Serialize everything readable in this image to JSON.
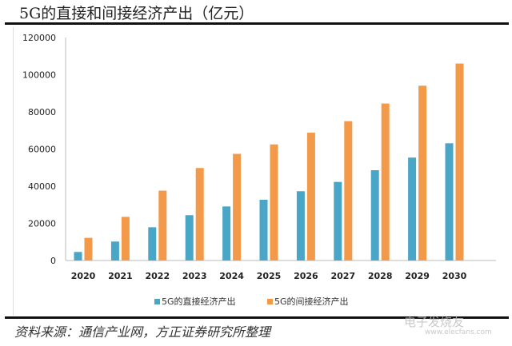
{
  "title": "5G的直接和间接经济产出（亿元）",
  "source": "资料来源：通信产业网，方正证券研究所整理",
  "watermark": {
    "text": "电子发烧友",
    "url_text": "www.elecfans.com"
  },
  "chart_data": {
    "type": "bar",
    "title": "5G的直接和间接经济产出（亿元）",
    "xlabel": "",
    "ylabel": "",
    "ylim": [
      0,
      120000
    ],
    "yticks": [
      0,
      20000,
      40000,
      60000,
      80000,
      100000,
      120000
    ],
    "grid": false,
    "legend": "bottom",
    "categories": [
      "2020",
      "2021",
      "2022",
      "2023",
      "2024",
      "2025",
      "2026",
      "2027",
      "2028",
      "2029",
      "2030"
    ],
    "series": [
      {
        "name": "5G的直接经济产出",
        "color": "#4aa6c6",
        "values": [
          4600,
          10200,
          17900,
          24400,
          29100,
          32700,
          37300,
          42300,
          48600,
          55400,
          63100
        ]
      },
      {
        "name": "5G的间接经济产出",
        "color": "#f39a4a",
        "values": [
          12200,
          23500,
          37600,
          49800,
          57400,
          62500,
          68800,
          75000,
          84500,
          94100,
          106000
        ]
      }
    ]
  }
}
